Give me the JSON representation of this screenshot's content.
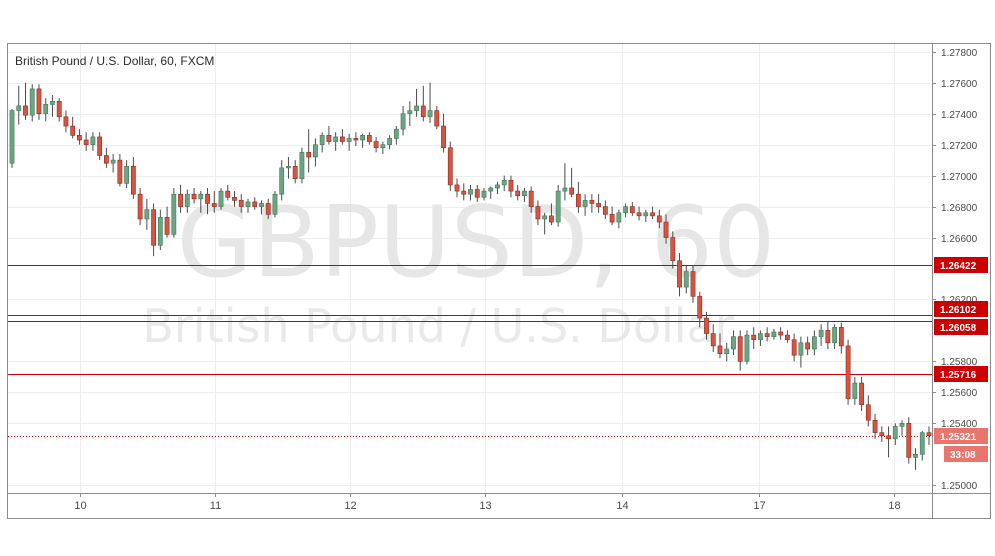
{
  "chart_data": {
    "type": "candlestick",
    "title": "British Pound / U.S. Dollar, 60, FXCM",
    "watermark": {
      "symbol": "GBPUSD, 60",
      "name": "British Pound / U.S. Dollar"
    },
    "ylim": [
      1.2495,
      1.2785
    ],
    "y_ticks": [
      "1.27800",
      "1.27600",
      "1.27400",
      "1.27200",
      "1.27000",
      "1.26800",
      "1.26600",
      "1.26200",
      "1.25800",
      "1.25600",
      "1.25400",
      "1.25000"
    ],
    "x_ticks": [
      "10",
      "11",
      "12",
      "13",
      "14",
      "17",
      "18"
    ],
    "levels": [
      {
        "label": "1.26422",
        "value": 1.26422
      },
      {
        "label": "1.26102",
        "value": 1.26102
      },
      {
        "label": "1.26058",
        "value": 1.26058
      },
      {
        "label": "1.25716",
        "value": 1.25716
      }
    ],
    "current_price": {
      "label": "1.25321",
      "value": 1.25321
    },
    "countdown": "33:08",
    "grid": true,
    "colors": {
      "up": "#6ba583",
      "down": "#d75442",
      "level": "#cc0000",
      "current": "#e8766c",
      "grid": "#eeeeee"
    },
    "candles": [
      [
        1.2708,
        1.2743,
        1.2705,
        1.2742
      ],
      [
        1.2742,
        1.2758,
        1.2733,
        1.2745
      ],
      [
        1.2745,
        1.276,
        1.2736,
        1.2739
      ],
      [
        1.2739,
        1.2759,
        1.2735,
        1.2756
      ],
      [
        1.2756,
        1.2759,
        1.2736,
        1.274
      ],
      [
        1.274,
        1.275,
        1.2735,
        1.2746
      ],
      [
        1.2746,
        1.2752,
        1.2738,
        1.2748
      ],
      [
        1.2748,
        1.275,
        1.2735,
        1.2738
      ],
      [
        1.2738,
        1.2742,
        1.2728,
        1.2732
      ],
      [
        1.2732,
        1.2738,
        1.2724,
        1.2726
      ],
      [
        1.2726,
        1.273,
        1.272,
        1.2723
      ],
      [
        1.2723,
        1.2728,
        1.2716,
        1.272
      ],
      [
        1.272,
        1.2728,
        1.2716,
        1.2725
      ],
      [
        1.2725,
        1.2728,
        1.271,
        1.2713
      ],
      [
        1.2713,
        1.2718,
        1.2705,
        1.2708
      ],
      [
        1.2708,
        1.2714,
        1.2702,
        1.271
      ],
      [
        1.271,
        1.2714,
        1.2693,
        1.2695
      ],
      [
        1.2695,
        1.271,
        1.2692,
        1.2706
      ],
      [
        1.2706,
        1.2712,
        1.2685,
        1.2688
      ],
      [
        1.2688,
        1.2692,
        1.2668,
        1.2672
      ],
      [
        1.2672,
        1.2685,
        1.2665,
        1.2678
      ],
      [
        1.2678,
        1.2682,
        1.2648,
        1.2655
      ],
      [
        1.2655,
        1.2678,
        1.2652,
        1.2673
      ],
      [
        1.2673,
        1.268,
        1.266,
        1.2662
      ],
      [
        1.2662,
        1.2692,
        1.266,
        1.2688
      ],
      [
        1.2688,
        1.2694,
        1.2676,
        1.268
      ],
      [
        1.268,
        1.2691,
        1.2676,
        1.2688
      ],
      [
        1.2688,
        1.2692,
        1.2682,
        1.2685
      ],
      [
        1.2685,
        1.269,
        1.2676,
        1.2688
      ],
      [
        1.2688,
        1.2692,
        1.2675,
        1.2682
      ],
      [
        1.2682,
        1.269,
        1.2676,
        1.268
      ],
      [
        1.268,
        1.2692,
        1.2678,
        1.269
      ],
      [
        1.269,
        1.2694,
        1.2684,
        1.2686
      ],
      [
        1.2686,
        1.269,
        1.268,
        1.2684
      ],
      [
        1.2684,
        1.2688,
        1.2676,
        1.268
      ],
      [
        1.268,
        1.2685,
        1.2676,
        1.2683
      ],
      [
        1.2683,
        1.2686,
        1.2678,
        1.268
      ],
      [
        1.268,
        1.2684,
        1.2675,
        1.2682
      ],
      [
        1.2682,
        1.2685,
        1.2672,
        1.2675
      ],
      [
        1.2675,
        1.269,
        1.2673,
        1.2688
      ],
      [
        1.2688,
        1.271,
        1.2684,
        1.2705
      ],
      [
        1.2705,
        1.2712,
        1.2698,
        1.2706
      ],
      [
        1.2706,
        1.271,
        1.2695,
        1.2698
      ],
      [
        1.2698,
        1.2718,
        1.2695,
        1.2715
      ],
      [
        1.2715,
        1.273,
        1.2702,
        1.2712
      ],
      [
        1.2712,
        1.2724,
        1.2706,
        1.272
      ],
      [
        1.272,
        1.2728,
        1.2715,
        1.2726
      ],
      [
        1.2726,
        1.2732,
        1.272,
        1.2722
      ],
      [
        1.2722,
        1.2728,
        1.2716,
        1.2725
      ],
      [
        1.2725,
        1.273,
        1.272,
        1.2722
      ],
      [
        1.2722,
        1.2727,
        1.2716,
        1.2724
      ],
      [
        1.2724,
        1.2728,
        1.2719,
        1.2723
      ],
      [
        1.2723,
        1.2727,
        1.2718,
        1.2726
      ],
      [
        1.2726,
        1.2728,
        1.272,
        1.2722
      ],
      [
        1.2722,
        1.2725,
        1.2715,
        1.2718
      ],
      [
        1.2718,
        1.2722,
        1.2714,
        1.272
      ],
      [
        1.272,
        1.2726,
        1.2717,
        1.2724
      ],
      [
        1.2724,
        1.2732,
        1.272,
        1.273
      ],
      [
        1.273,
        1.2745,
        1.2726,
        1.274
      ],
      [
        1.274,
        1.2748,
        1.2732,
        1.2742
      ],
      [
        1.2742,
        1.2756,
        1.2738,
        1.2745
      ],
      [
        1.2745,
        1.2758,
        1.2735,
        1.2738
      ],
      [
        1.2738,
        1.276,
        1.2734,
        1.2742
      ],
      [
        1.2742,
        1.2745,
        1.273,
        1.2732
      ],
      [
        1.2732,
        1.274,
        1.2715,
        1.2718
      ],
      [
        1.2718,
        1.2722,
        1.269,
        1.2694
      ],
      [
        1.2694,
        1.2698,
        1.2686,
        1.269
      ],
      [
        1.269,
        1.2695,
        1.2684,
        1.2688
      ],
      [
        1.2688,
        1.2694,
        1.2684,
        1.2691
      ],
      [
        1.2691,
        1.2694,
        1.2683,
        1.2686
      ],
      [
        1.2686,
        1.2692,
        1.2684,
        1.269
      ],
      [
        1.269,
        1.2693,
        1.2685,
        1.2692
      ],
      [
        1.2692,
        1.2696,
        1.2688,
        1.2694
      ],
      [
        1.2694,
        1.27,
        1.269,
        1.2697
      ],
      [
        1.2697,
        1.27,
        1.2686,
        1.269
      ],
      [
        1.269,
        1.2694,
        1.2684,
        1.2687
      ],
      [
        1.2687,
        1.2692,
        1.2683,
        1.269
      ],
      [
        1.269,
        1.2693,
        1.2676,
        1.268
      ],
      [
        1.268,
        1.2684,
        1.2668,
        1.2672
      ],
      [
        1.2672,
        1.2676,
        1.2662,
        1.2674
      ],
      [
        1.2674,
        1.2682,
        1.2668,
        1.267
      ],
      [
        1.267,
        1.2694,
        1.2667,
        1.269
      ],
      [
        1.269,
        1.2708,
        1.2684,
        1.2692
      ],
      [
        1.2692,
        1.2705,
        1.2686,
        1.2688
      ],
      [
        1.2688,
        1.2696,
        1.2676,
        1.268
      ],
      [
        1.268,
        1.2688,
        1.2674,
        1.2684
      ],
      [
        1.2684,
        1.2688,
        1.2676,
        1.2682
      ],
      [
        1.2682,
        1.2688,
        1.2676,
        1.268
      ],
      [
        1.268,
        1.2684,
        1.2672,
        1.2675
      ],
      [
        1.2675,
        1.268,
        1.2668,
        1.267
      ],
      [
        1.267,
        1.2678,
        1.2666,
        1.2676
      ],
      [
        1.2676,
        1.2682,
        1.2673,
        1.268
      ],
      [
        1.268,
        1.2683,
        1.2674,
        1.2676
      ],
      [
        1.2676,
        1.268,
        1.2671,
        1.2674
      ],
      [
        1.2674,
        1.2678,
        1.267,
        1.2676
      ],
      [
        1.2676,
        1.268,
        1.2672,
        1.2674
      ],
      [
        1.2674,
        1.2678,
        1.2666,
        1.267
      ],
      [
        1.267,
        1.2675,
        1.2656,
        1.266
      ],
      [
        1.266,
        1.2664,
        1.264,
        1.2645
      ],
      [
        1.2645,
        1.265,
        1.2622,
        1.2628
      ],
      [
        1.2628,
        1.2642,
        1.2624,
        1.2638
      ],
      [
        1.2638,
        1.2642,
        1.2618,
        1.2622
      ],
      [
        1.2622,
        1.2625,
        1.2602,
        1.2608
      ],
      [
        1.2608,
        1.2612,
        1.2594,
        1.2598
      ],
      [
        1.2598,
        1.2604,
        1.2586,
        1.259
      ],
      [
        1.259,
        1.2598,
        1.2582,
        1.2585
      ],
      [
        1.2585,
        1.2592,
        1.258,
        1.2588
      ],
      [
        1.2588,
        1.26,
        1.2584,
        1.2596
      ],
      [
        1.2596,
        1.26,
        1.2574,
        1.258
      ],
      [
        1.258,
        1.26,
        1.2578,
        1.2597
      ],
      [
        1.2597,
        1.2602,
        1.2588,
        1.2594
      ],
      [
        1.2594,
        1.26,
        1.259,
        1.2598
      ],
      [
        1.2598,
        1.2602,
        1.2593,
        1.2596
      ],
      [
        1.2596,
        1.2601,
        1.2594,
        1.2599
      ],
      [
        1.2599,
        1.2602,
        1.2594,
        1.2597
      ],
      [
        1.2597,
        1.26,
        1.2592,
        1.2594
      ],
      [
        1.2594,
        1.2598,
        1.258,
        1.2584
      ],
      [
        1.2584,
        1.2596,
        1.2576,
        1.2592
      ],
      [
        1.2592,
        1.2596,
        1.2584,
        1.2588
      ],
      [
        1.2588,
        1.26,
        1.2584,
        1.2596
      ],
      [
        1.2596,
        1.2604,
        1.259,
        1.26
      ],
      [
        1.26,
        1.2606,
        1.2588,
        1.2592
      ],
      [
        1.2592,
        1.2604,
        1.2588,
        1.2602
      ],
      [
        1.2602,
        1.2605,
        1.2585,
        1.259
      ],
      [
        1.259,
        1.2594,
        1.2552,
        1.2556
      ],
      [
        1.2556,
        1.257,
        1.2552,
        1.2566
      ],
      [
        1.2566,
        1.257,
        1.2548,
        1.2552
      ],
      [
        1.2552,
        1.2558,
        1.2538,
        1.2542
      ],
      [
        1.2542,
        1.2546,
        1.253,
        1.2534
      ],
      [
        1.2534,
        1.2538,
        1.2528,
        1.2532
      ],
      [
        1.2532,
        1.2538,
        1.2518,
        1.253
      ],
      [
        1.253,
        1.254,
        1.2526,
        1.2538
      ],
      [
        1.2538,
        1.2542,
        1.2532,
        1.254
      ],
      [
        1.254,
        1.2544,
        1.2514,
        1.2518
      ],
      [
        1.2518,
        1.2524,
        1.251,
        1.252
      ],
      [
        1.252,
        1.2535,
        1.2516,
        1.2534
      ],
      [
        1.2534,
        1.2538,
        1.2526,
        1.2532
      ]
    ]
  }
}
